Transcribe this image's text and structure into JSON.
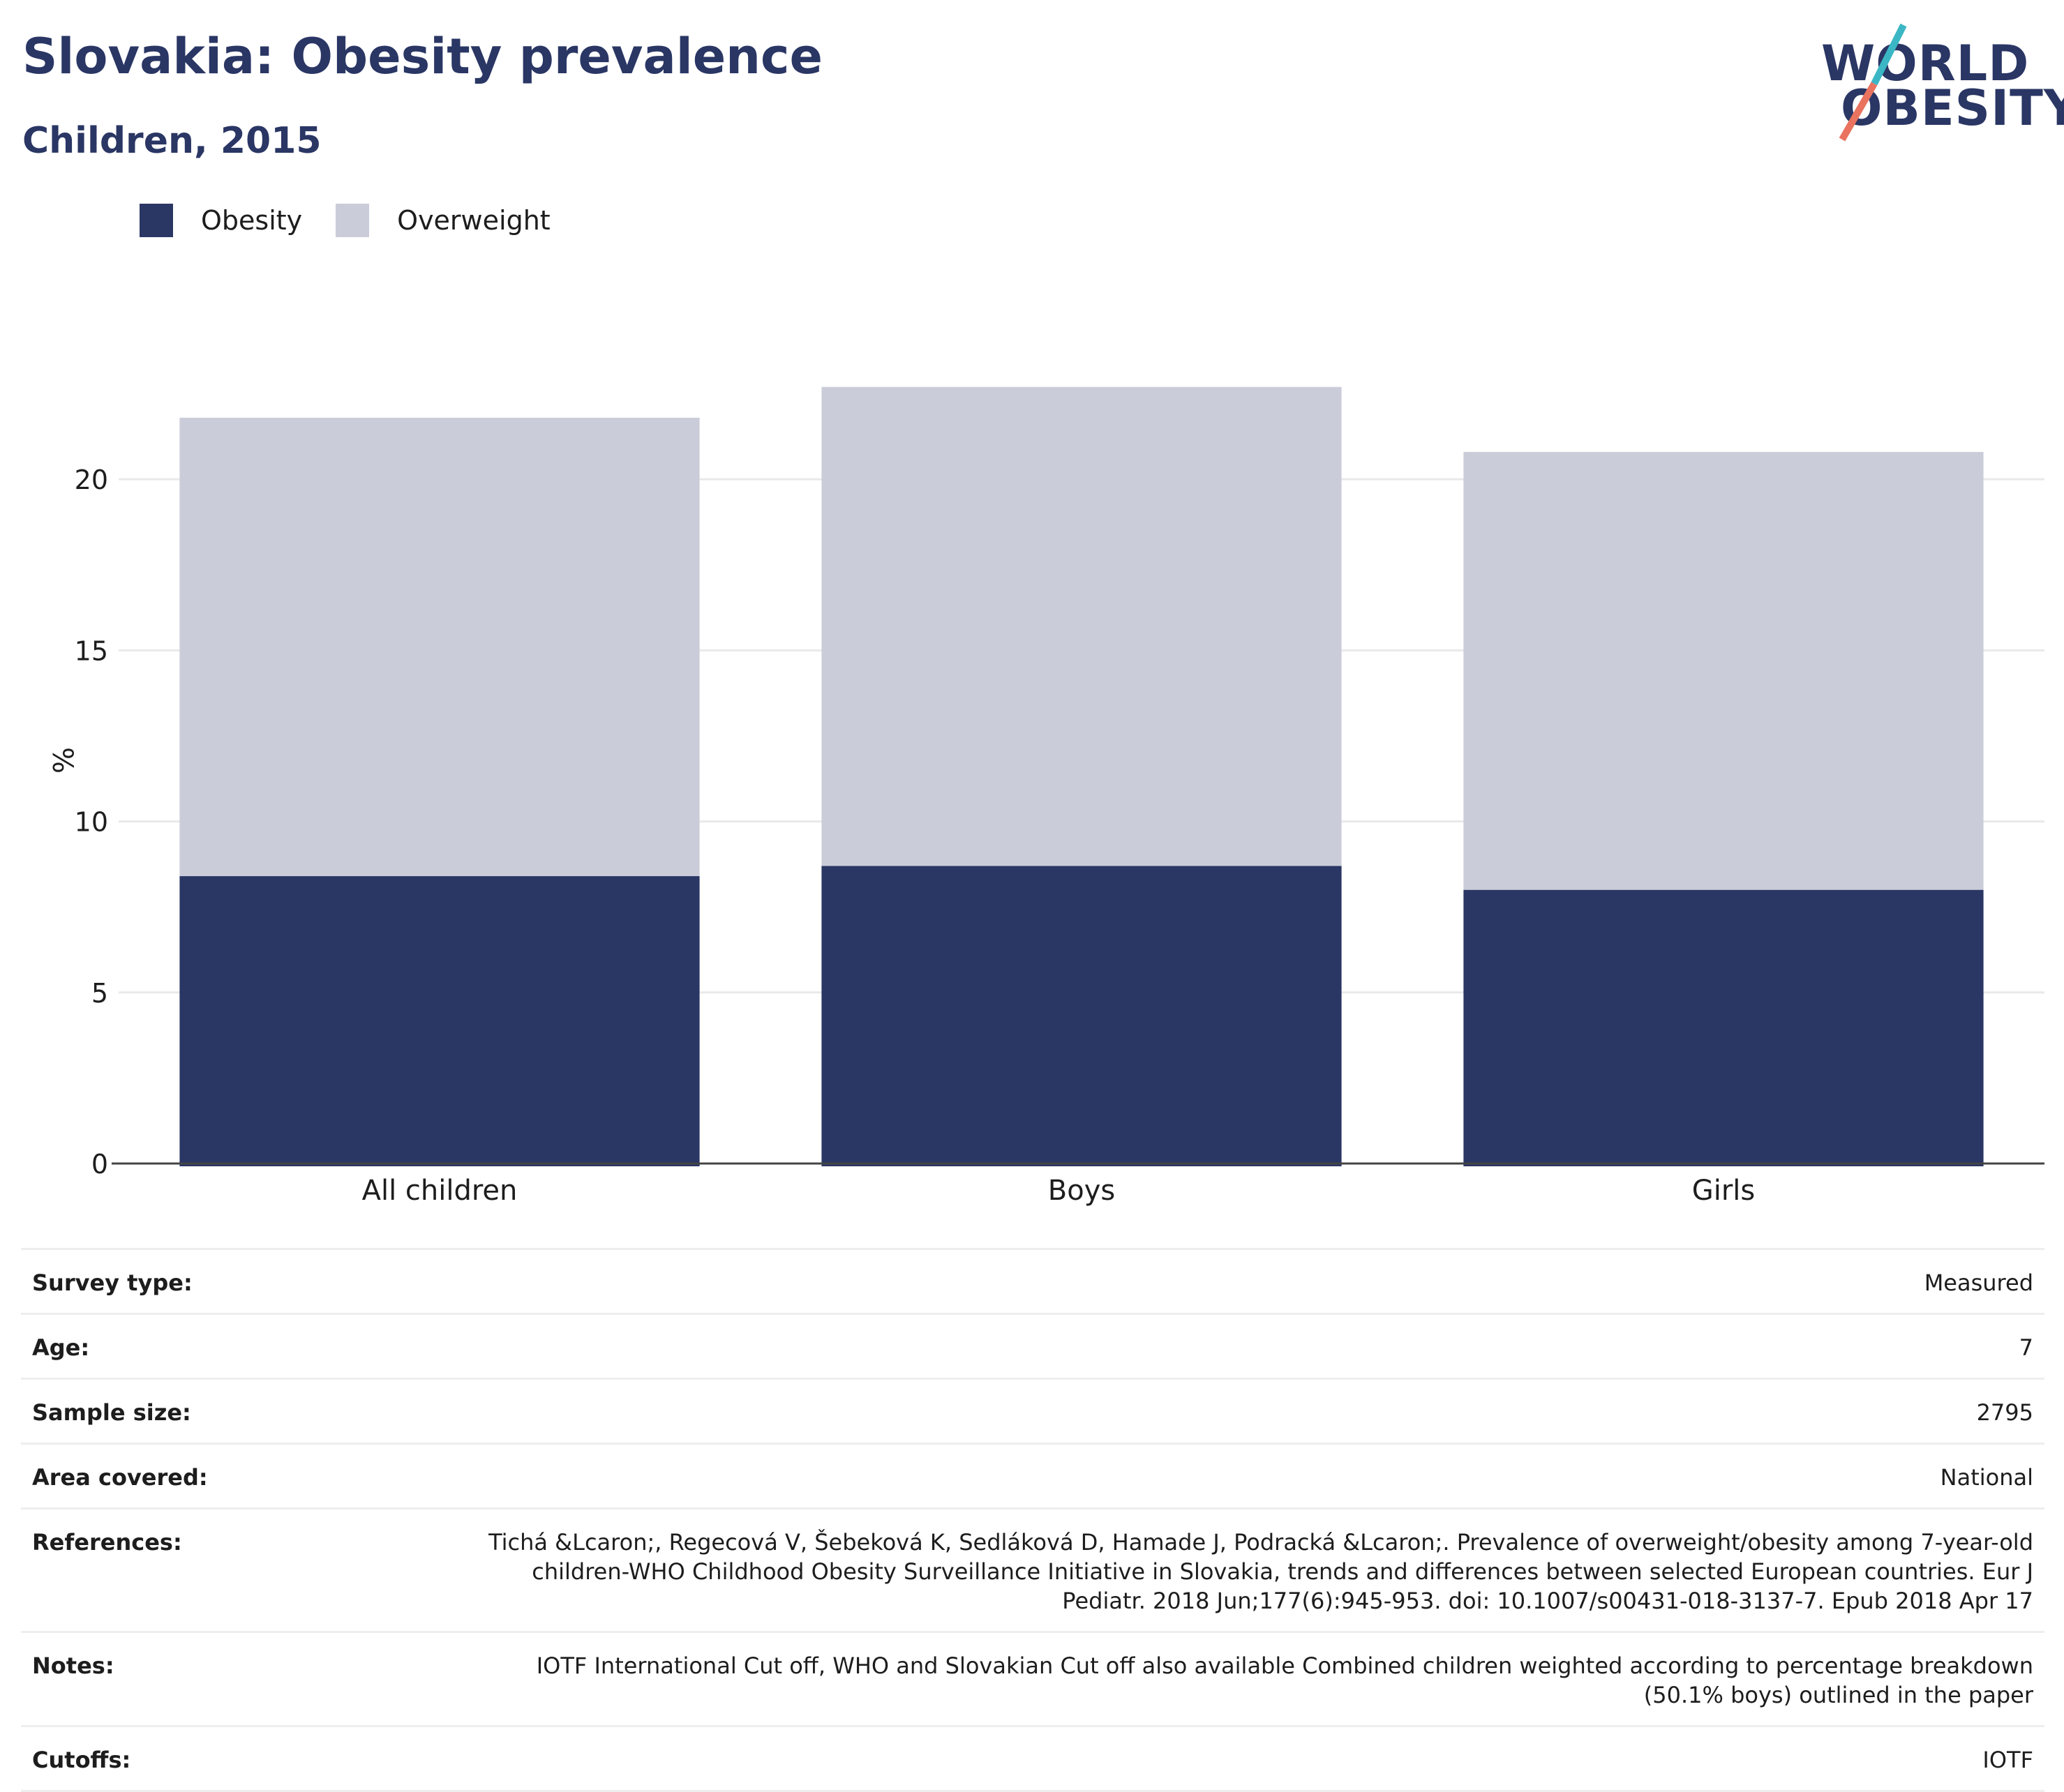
{
  "header": {
    "title": "Slovakia: Obesity prevalence",
    "subtitle": "Children, 2015"
  },
  "logo": {
    "line1": "WORLD",
    "line2": "OBESITY",
    "accent_colors": [
      "#3bb6c4",
      "#e9735f"
    ]
  },
  "colors": {
    "obesity": "#2a3664",
    "overweight": "#cacdd9",
    "text_dark": "#2a3664"
  },
  "chart_data": {
    "type": "bar",
    "stacked": true,
    "categories": [
      "All children",
      "Boys",
      "Girls"
    ],
    "series": [
      {
        "name": "Obesity",
        "values": [
          8.4,
          8.7,
          8.0
        ]
      },
      {
        "name": "Overweight",
        "values": [
          13.4,
          14.0,
          12.8
        ]
      }
    ],
    "ylabel": "%",
    "ylim": [
      0,
      23
    ],
    "yticks": [
      0,
      5,
      10,
      15,
      20
    ],
    "grid": true,
    "legend_position": "top-left"
  },
  "info": [
    {
      "label": "Survey type:",
      "value": "Measured"
    },
    {
      "label": "Age:",
      "value": "7"
    },
    {
      "label": "Sample size:",
      "value": "2795"
    },
    {
      "label": "Area covered:",
      "value": "National"
    },
    {
      "label": "References:",
      "value": "Tichá &Lcaron;, Regecová V, Šebeková K, Sedláková D, Hamade J, Podracká &Lcaron;. Prevalence of overweight/obesity among 7-year-old children-WHO Childhood Obesity Surveillance Initiative in Slovakia, trends and differences between selected European countries. Eur J Pediatr. 2018 Jun;177(6):945-953. doi: 10.1007/s00431-018-3137-7. Epub 2018 Apr 17"
    },
    {
      "label": "Notes:",
      "value": "IOTF International Cut off, WHO and Slovakian Cut off also available Combined children weighted according to percentage breakdown (50.1% boys) outlined in the paper"
    },
    {
      "label": "Cutoffs:",
      "value": "IOTF"
    }
  ]
}
